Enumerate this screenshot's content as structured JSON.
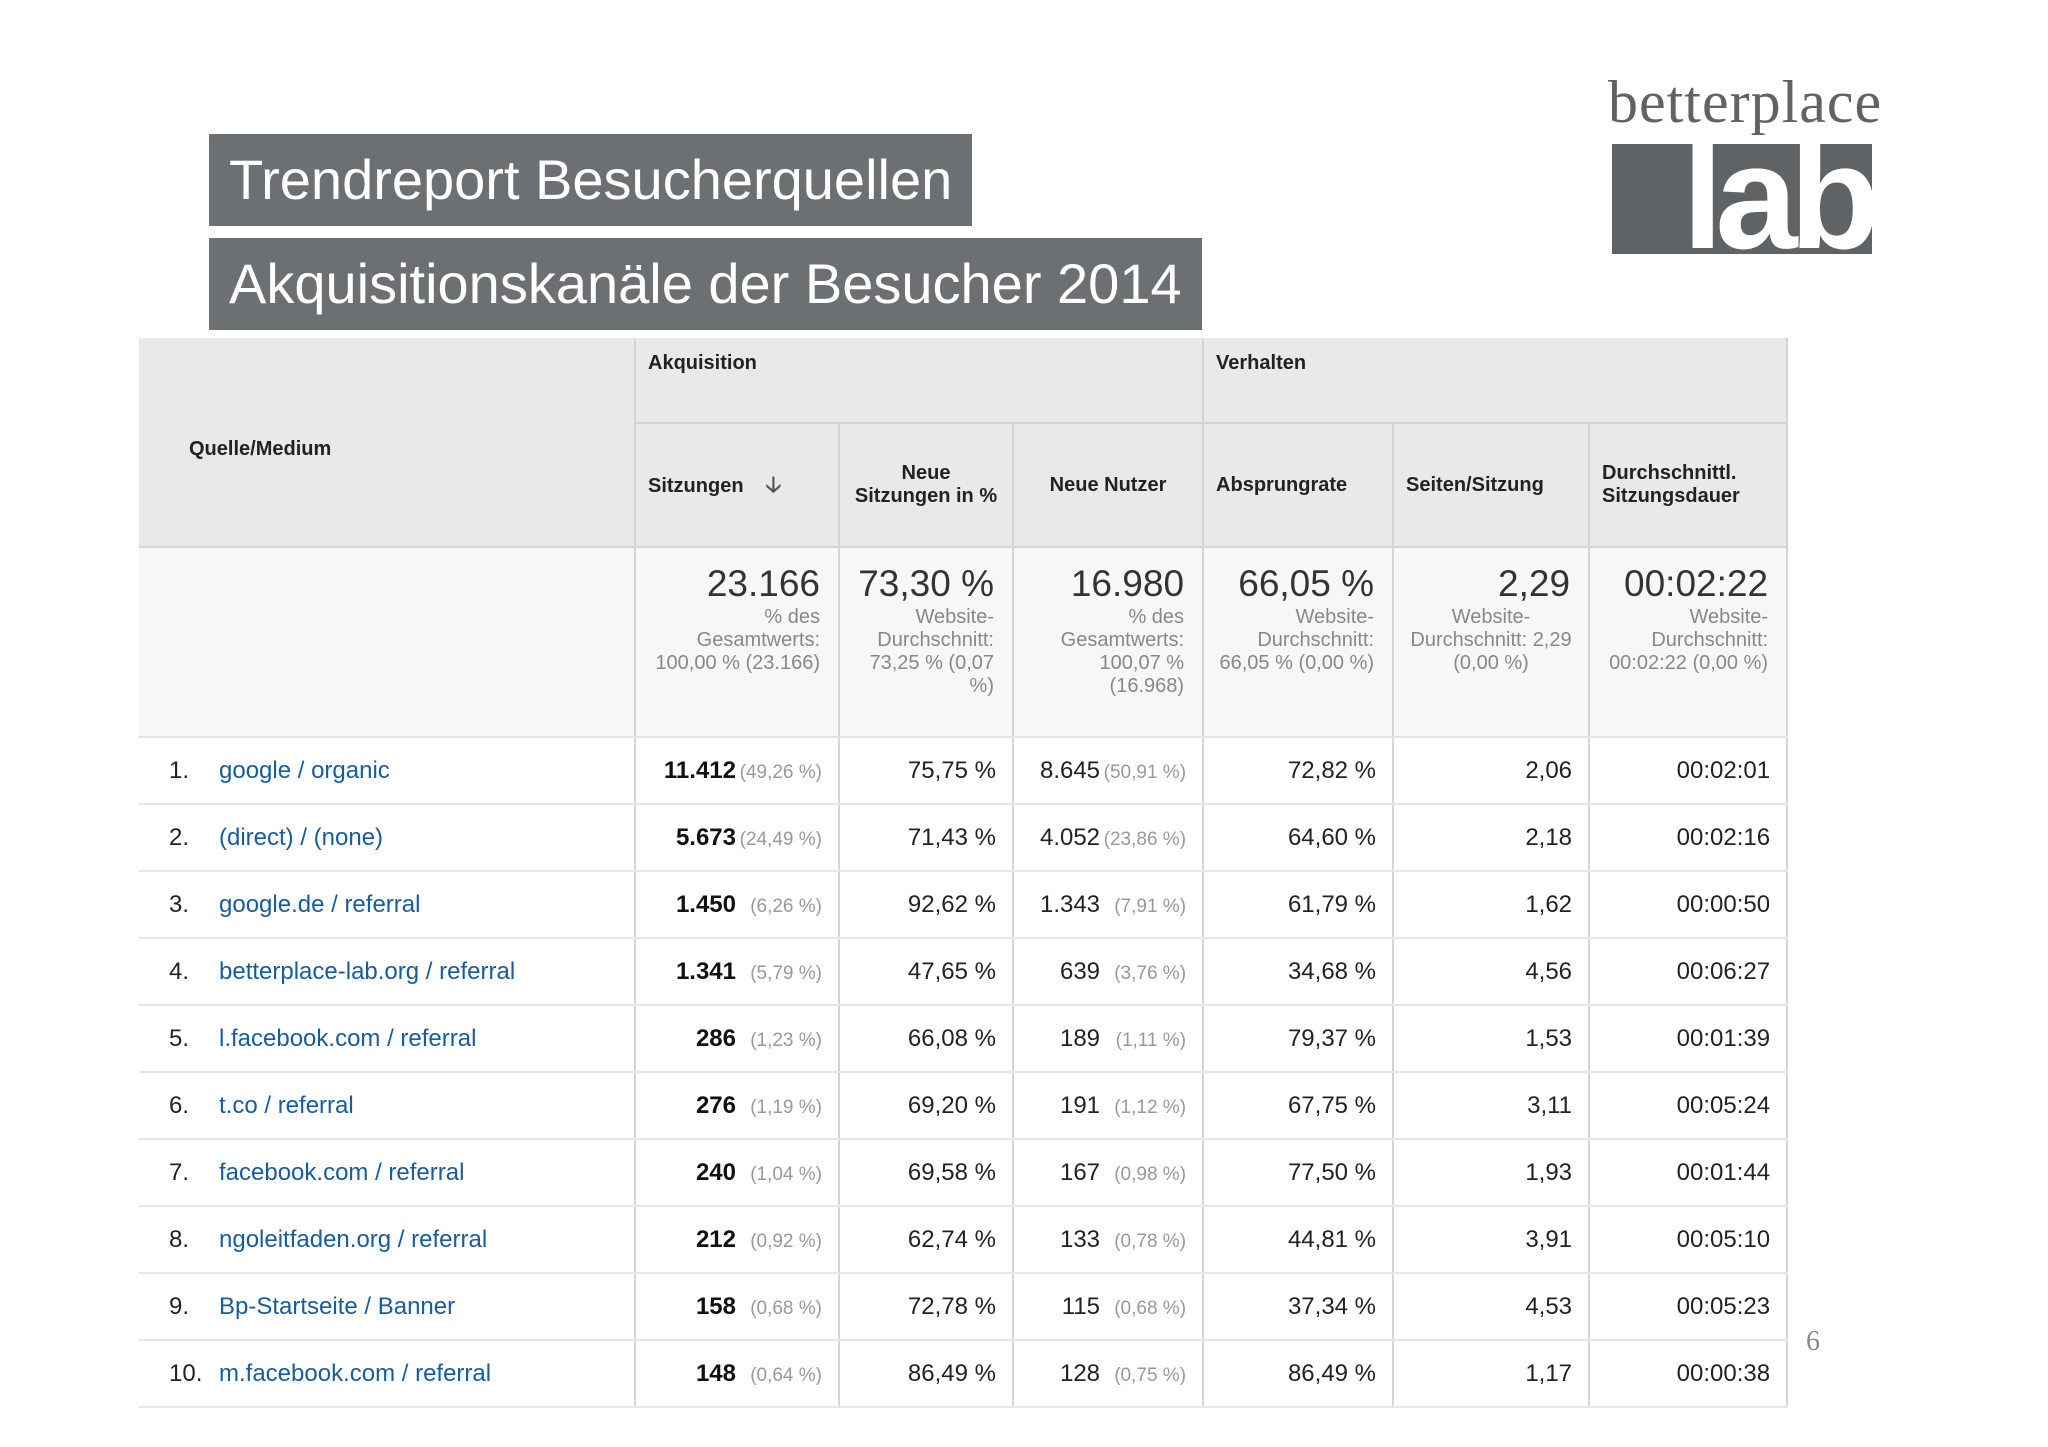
{
  "title": "Trendreport Besucherquellen",
  "subtitle": "Akquisitionskanäle der Besucher 2014",
  "logo": {
    "top": "betterplace",
    "bottom": "lab",
    "color": "#606366"
  },
  "page_number": "6",
  "table": {
    "group_headers": {
      "source": "Quelle/Medium",
      "acquisition": "Akquisition",
      "behavior": "Verhalten"
    },
    "columns": {
      "sessions": "Sitzungen",
      "new_sessions_pct": "Neue Sitzungen in %",
      "new_users": "Neue Nutzer",
      "bounce_rate": "Absprungrate",
      "pages_per_session": "Seiten/Sitzung",
      "avg_session_duration": "Durchschnittl. Sitzungsdauer"
    },
    "sort_icon": "arrow-down-icon",
    "totals": {
      "sessions": {
        "value": "23.166",
        "note": "% des Gesamtwerts: 100,00 % (23.166)"
      },
      "new_sessions_pct": {
        "value": "73,30 %",
        "note": "Website-Durchschnitt: 73,25 % (0,07 %)"
      },
      "new_users": {
        "value": "16.980",
        "note": "% des Gesamtwerts: 100,07 % (16.968)"
      },
      "bounce_rate": {
        "value": "66,05 %",
        "note": "Website-Durchschnitt: 66,05 % (0,00 %)"
      },
      "pages_per_session": {
        "value": "2,29",
        "note": "Website-Durchschnitt: 2,29 (0,00 %)"
      },
      "avg_session_duration": {
        "value": "00:02:22",
        "note": "Website-Durchschnitt: 00:02:22 (0,00 %)"
      }
    },
    "rows": [
      {
        "idx": "1.",
        "source": "google / organic",
        "sessions": "11.412",
        "sessions_pct": "(49,26 %)",
        "new_sessions_pct": "75,75 %",
        "new_users": "8.645",
        "new_users_pct": "(50,91 %)",
        "bounce_rate": "72,82 %",
        "pages_per_session": "2,06",
        "duration": "00:02:01"
      },
      {
        "idx": "2.",
        "source": "(direct) / (none)",
        "sessions": "5.673",
        "sessions_pct": "(24,49 %)",
        "new_sessions_pct": "71,43 %",
        "new_users": "4.052",
        "new_users_pct": "(23,86 %)",
        "bounce_rate": "64,60 %",
        "pages_per_session": "2,18",
        "duration": "00:02:16"
      },
      {
        "idx": "3.",
        "source": "google.de / referral",
        "sessions": "1.450",
        "sessions_pct": "(6,26 %)",
        "new_sessions_pct": "92,62 %",
        "new_users": "1.343",
        "new_users_pct": "(7,91 %)",
        "bounce_rate": "61,79 %",
        "pages_per_session": "1,62",
        "duration": "00:00:50"
      },
      {
        "idx": "4.",
        "source": "betterplace-lab.org / referral",
        "sessions": "1.341",
        "sessions_pct": "(5,79 %)",
        "new_sessions_pct": "47,65 %",
        "new_users": "639",
        "new_users_pct": "(3,76 %)",
        "bounce_rate": "34,68 %",
        "pages_per_session": "4,56",
        "duration": "00:06:27"
      },
      {
        "idx": "5.",
        "source": "l.facebook.com / referral",
        "sessions": "286",
        "sessions_pct": "(1,23 %)",
        "new_sessions_pct": "66,08 %",
        "new_users": "189",
        "new_users_pct": "(1,11 %)",
        "bounce_rate": "79,37 %",
        "pages_per_session": "1,53",
        "duration": "00:01:39"
      },
      {
        "idx": "6.",
        "source": "t.co / referral",
        "sessions": "276",
        "sessions_pct": "(1,19 %)",
        "new_sessions_pct": "69,20 %",
        "new_users": "191",
        "new_users_pct": "(1,12 %)",
        "bounce_rate": "67,75 %",
        "pages_per_session": "3,11",
        "duration": "00:05:24"
      },
      {
        "idx": "7.",
        "source": "facebook.com / referral",
        "sessions": "240",
        "sessions_pct": "(1,04 %)",
        "new_sessions_pct": "69,58 %",
        "new_users": "167",
        "new_users_pct": "(0,98 %)",
        "bounce_rate": "77,50 %",
        "pages_per_session": "1,93",
        "duration": "00:01:44"
      },
      {
        "idx": "8.",
        "source": "ngoleitfaden.org / referral",
        "sessions": "212",
        "sessions_pct": "(0,92 %)",
        "new_sessions_pct": "62,74 %",
        "new_users": "133",
        "new_users_pct": "(0,78 %)",
        "bounce_rate": "44,81 %",
        "pages_per_session": "3,91",
        "duration": "00:05:10"
      },
      {
        "idx": "9.",
        "source": "Bp-Startseite / Banner",
        "sessions": "158",
        "sessions_pct": "(0,68 %)",
        "new_sessions_pct": "72,78 %",
        "new_users": "115",
        "new_users_pct": "(0,68 %)",
        "bounce_rate": "37,34 %",
        "pages_per_session": "4,53",
        "duration": "00:05:23"
      },
      {
        "idx": "10.",
        "source": "m.facebook.com / referral",
        "sessions": "148",
        "sessions_pct": "(0,64 %)",
        "new_sessions_pct": "86,49 %",
        "new_users": "128",
        "new_users_pct": "(0,75 %)",
        "bounce_rate": "86,49 %",
        "pages_per_session": "1,17",
        "duration": "00:00:38"
      }
    ]
  }
}
